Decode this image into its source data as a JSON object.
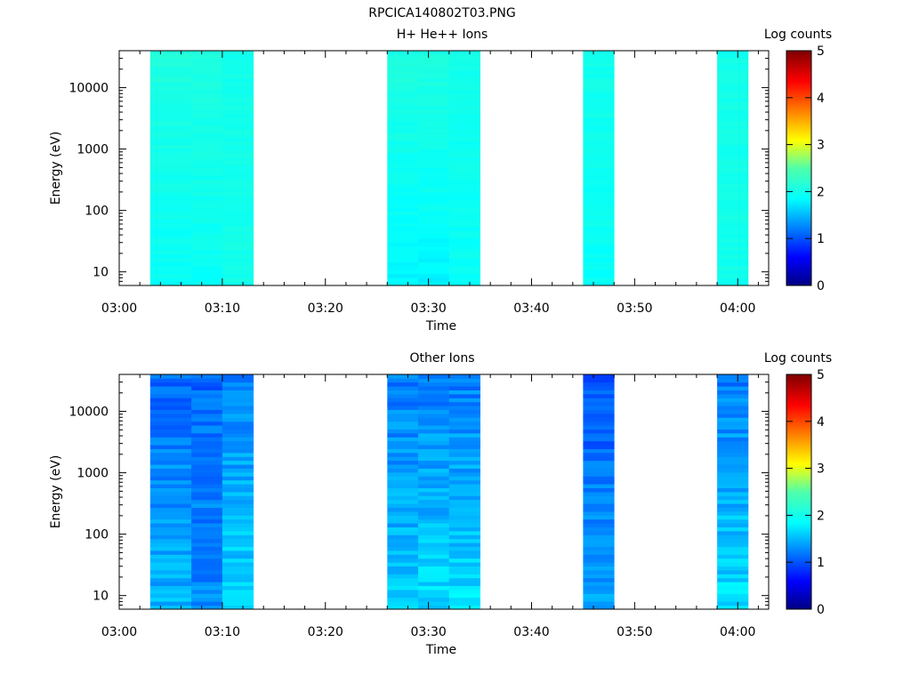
{
  "figure": {
    "title": "RPCICA140802T03.PNG"
  },
  "chart_data": [
    {
      "type": "heatmap",
      "title": "H+ He++ Ions",
      "xlabel": "Time",
      "ylabel": "Energy (eV)",
      "x_ticks": [
        "03:00",
        "03:10",
        "03:20",
        "03:30",
        "03:40",
        "03:50",
        "04:00"
      ],
      "x_range": [
        "03:00",
        "04:03"
      ],
      "y_scale": "log",
      "y_ticks": [
        "10",
        "100",
        "1000",
        "10000"
      ],
      "y_range": [
        6,
        40000
      ],
      "colorbar": {
        "label": "Log counts",
        "range": [
          0,
          5
        ],
        "ticks": [
          "0",
          "1",
          "2",
          "3",
          "4",
          "5"
        ],
        "colormap": "rainbow"
      },
      "time_bins": [
        {
          "start": "03:03",
          "end": "03:07",
          "low_energy_log_counts": 1.9,
          "high_energy_log_counts": 2.1
        },
        {
          "start": "03:07",
          "end": "03:10",
          "low_energy_log_counts": 1.9,
          "high_energy_log_counts": 2.1
        },
        {
          "start": "03:10",
          "end": "03:13",
          "low_energy_log_counts": 2.0,
          "high_energy_log_counts": 2.0
        },
        {
          "start": "03:26",
          "end": "03:29",
          "low_energy_log_counts": 1.8,
          "high_energy_log_counts": 2.1
        },
        {
          "start": "03:29",
          "end": "03:32",
          "low_energy_log_counts": 1.8,
          "high_energy_log_counts": 2.1
        },
        {
          "start": "03:32",
          "end": "03:35",
          "low_energy_log_counts": 1.9,
          "high_energy_log_counts": 2.0
        },
        {
          "start": "03:45",
          "end": "03:48",
          "low_energy_log_counts": 1.9,
          "high_energy_log_counts": 2.0
        },
        {
          "start": "03:58",
          "end": "04:01",
          "low_energy_log_counts": 2.0,
          "high_energy_log_counts": 2.0
        }
      ]
    },
    {
      "type": "heatmap",
      "title": "Other Ions",
      "xlabel": "Time",
      "ylabel": "Energy (eV)",
      "x_ticks": [
        "03:00",
        "03:10",
        "03:20",
        "03:30",
        "03:40",
        "03:50",
        "04:00"
      ],
      "x_range": [
        "03:00",
        "04:03"
      ],
      "y_scale": "log",
      "y_ticks": [
        "10",
        "100",
        "1000",
        "10000"
      ],
      "y_range": [
        6,
        40000
      ],
      "colorbar": {
        "label": "Log counts",
        "range": [
          0,
          5
        ],
        "ticks": [
          "0",
          "1",
          "2",
          "3",
          "4",
          "5"
        ],
        "colormap": "rainbow"
      },
      "time_bins": [
        {
          "start": "03:03",
          "end": "03:07",
          "low_energy_log_counts": 1.5,
          "high_energy_log_counts": 1.1
        },
        {
          "start": "03:07",
          "end": "03:10",
          "low_energy_log_counts": 1.3,
          "high_energy_log_counts": 1.1
        },
        {
          "start": "03:10",
          "end": "03:13",
          "low_energy_log_counts": 1.7,
          "high_energy_log_counts": 1.2
        },
        {
          "start": "03:26",
          "end": "03:29",
          "low_energy_log_counts": 1.6,
          "high_energy_log_counts": 1.2
        },
        {
          "start": "03:29",
          "end": "03:32",
          "low_energy_log_counts": 1.7,
          "high_energy_log_counts": 1.2
        },
        {
          "start": "03:32",
          "end": "03:35",
          "low_energy_log_counts": 1.7,
          "high_energy_log_counts": 1.2
        },
        {
          "start": "03:45",
          "end": "03:48",
          "low_energy_log_counts": 1.4,
          "high_energy_log_counts": 1.0
        },
        {
          "start": "03:58",
          "end": "04:01",
          "low_energy_log_counts": 1.7,
          "high_energy_log_counts": 1.2
        }
      ]
    }
  ]
}
